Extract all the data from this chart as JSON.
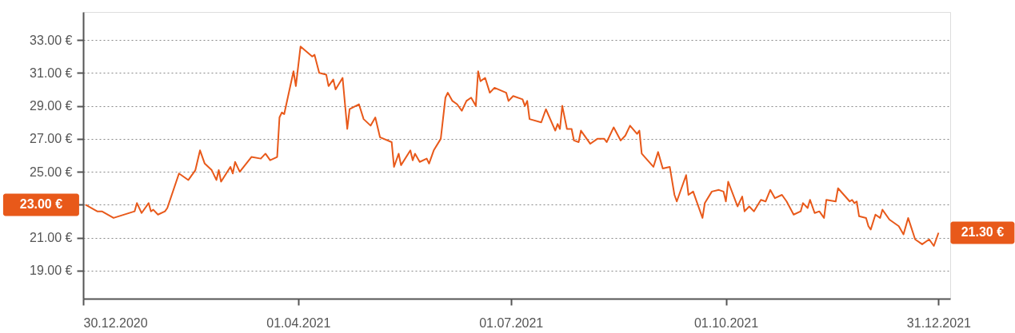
{
  "chart_data": {
    "type": "line",
    "x": [
      "2020-12-31",
      "2021-01-05",
      "2021-01-07",
      "2021-01-12",
      "2021-01-21",
      "2021-01-22",
      "2021-01-24",
      "2021-01-27",
      "2021-01-28",
      "2021-01-29",
      "2021-01-31",
      "2021-02-03",
      "2021-02-04",
      "2021-02-09",
      "2021-02-13",
      "2021-02-16",
      "2021-02-18",
      "2021-02-20",
      "2021-02-23",
      "2021-02-25",
      "2021-02-26",
      "2021-02-27",
      "2021-03-03",
      "2021-03-04",
      "2021-03-05",
      "2021-03-07",
      "2021-03-12",
      "2021-03-16",
      "2021-03-18",
      "2021-03-20",
      "2021-03-23",
      "2021-03-24",
      "2021-03-25",
      "2021-03-26",
      "2021-03-30",
      "2021-03-31",
      "2021-04-02",
      "2021-04-07",
      "2021-04-08",
      "2021-04-10",
      "2021-04-13",
      "2021-04-14",
      "2021-04-16",
      "2021-04-17",
      "2021-04-20",
      "2021-04-22",
      "2021-04-23",
      "2021-04-27",
      "2021-04-29",
      "2021-05-02",
      "2021-05-04",
      "2021-05-06",
      "2021-05-11",
      "2021-05-12",
      "2021-05-14",
      "2021-05-15",
      "2021-05-19",
      "2021-05-20",
      "2021-05-21",
      "2021-05-23",
      "2021-05-26",
      "2021-05-27",
      "2021-05-29",
      "2021-06-01",
      "2021-06-03",
      "2021-06-04",
      "2021-06-06",
      "2021-06-08",
      "2021-06-10",
      "2021-06-12",
      "2021-06-14",
      "2021-06-16",
      "2021-06-17",
      "2021-06-18",
      "2021-06-20",
      "2021-06-22",
      "2021-06-24",
      "2021-06-29",
      "2021-06-30",
      "2021-07-02",
      "2021-07-06",
      "2021-07-07",
      "2021-07-08",
      "2021-07-09",
      "2021-07-14",
      "2021-07-16",
      "2021-07-20",
      "2021-07-21",
      "2021-07-22",
      "2021-07-23",
      "2021-07-25",
      "2021-07-27",
      "2021-07-28",
      "2021-07-30",
      "2021-07-31",
      "2021-08-04",
      "2021-08-07",
      "2021-08-10",
      "2021-08-11",
      "2021-08-14",
      "2021-08-17",
      "2021-08-19",
      "2021-08-21",
      "2021-08-24",
      "2021-08-25",
      "2021-08-26",
      "2021-08-31",
      "2021-09-02",
      "2021-09-04",
      "2021-09-07",
      "2021-09-09",
      "2021-09-10",
      "2021-09-14",
      "2021-09-15",
      "2021-09-17",
      "2021-09-21",
      "2021-09-22",
      "2021-09-25",
      "2021-09-28",
      "2021-09-30",
      "2021-10-01",
      "2021-10-02",
      "2021-10-06",
      "2021-10-08",
      "2021-10-09",
      "2021-10-11",
      "2021-10-13",
      "2021-10-16",
      "2021-10-18",
      "2021-10-20",
      "2021-10-22",
      "2021-10-25",
      "2021-10-27",
      "2021-10-30",
      "2021-11-02",
      "2021-11-03",
      "2021-11-05",
      "2021-11-06",
      "2021-11-08",
      "2021-11-10",
      "2021-11-12",
      "2021-11-13",
      "2021-11-17",
      "2021-11-18",
      "2021-11-23",
      "2021-11-24",
      "2021-11-25",
      "2021-11-26",
      "2021-11-27",
      "2021-11-30",
      "2021-12-01",
      "2021-12-02",
      "2021-12-04",
      "2021-12-06",
      "2021-12-07",
      "2021-12-10",
      "2021-12-14",
      "2021-12-16",
      "2021-12-18",
      "2021-12-21",
      "2021-12-24",
      "2021-12-27",
      "2021-12-29",
      "2021-12-31"
    ],
    "series": [
      {
        "color": "#e8591a",
        "values": [
          23.0,
          22.6,
          22.6,
          22.2,
          22.6,
          23.1,
          22.5,
          23.1,
          22.6,
          22.7,
          22.4,
          22.6,
          22.8,
          24.9,
          24.5,
          25.1,
          26.3,
          25.5,
          25.1,
          24.5,
          25.1,
          24.4,
          25.3,
          24.9,
          25.6,
          25.0,
          25.9,
          25.8,
          26.1,
          25.7,
          25.9,
          28.3,
          28.6,
          28.5,
          31.1,
          30.2,
          32.6,
          32.0,
          32.1,
          31.0,
          30.9,
          30.2,
          30.6,
          30.0,
          30.7,
          27.6,
          28.8,
          29.1,
          28.2,
          27.8,
          28.3,
          27.1,
          26.8,
          25.3,
          26.1,
          25.4,
          26.3,
          25.7,
          26.1,
          25.6,
          25.8,
          25.5,
          26.3,
          27.0,
          29.5,
          29.8,
          29.3,
          29.1,
          28.7,
          29.3,
          29.5,
          29.0,
          31.1,
          30.5,
          30.7,
          29.8,
          30.1,
          29.8,
          29.3,
          29.6,
          29.4,
          29.0,
          29.3,
          28.2,
          28.0,
          28.8,
          27.5,
          27.9,
          27.6,
          29.0,
          27.6,
          27.6,
          26.9,
          26.8,
          27.5,
          26.7,
          27.0,
          27.0,
          26.8,
          27.7,
          26.9,
          27.2,
          27.8,
          27.3,
          27.5,
          26.1,
          25.3,
          26.2,
          25.2,
          25.3,
          23.6,
          23.2,
          24.8,
          23.6,
          23.8,
          22.2,
          23.1,
          23.8,
          23.9,
          23.8,
          23.2,
          24.4,
          22.9,
          23.5,
          22.6,
          22.9,
          22.6,
          23.3,
          23.2,
          23.9,
          23.4,
          23.6,
          23.2,
          22.4,
          22.6,
          23.1,
          22.8,
          23.3,
          22.5,
          22.6,
          22.2,
          23.3,
          23.2,
          24.0,
          23.2,
          23.3,
          23.1,
          23.2,
          22.3,
          22.2,
          21.7,
          21.5,
          22.4,
          22.2,
          22.7,
          22.1,
          21.7,
          21.2,
          22.2,
          20.9,
          20.6,
          20.9,
          20.5,
          21.3
        ]
      }
    ],
    "xlim": [
      "2020-12-30",
      "2022-01-05"
    ],
    "xticks": [
      {
        "value": "2020-12-30",
        "label": "30.12.2020"
      },
      {
        "value": "2021-04-01",
        "label": "01.04.2021"
      },
      {
        "value": "2021-07-01",
        "label": "01.07.2021"
      },
      {
        "value": "2021-10-01",
        "label": "01.10.2021"
      },
      {
        "value": "2021-12-31",
        "label": "31.12.2021"
      }
    ],
    "ylim": [
      17.3,
      34.7
    ],
    "yticks": [
      {
        "value": 19,
        "label": "19.00 €"
      },
      {
        "value": 21,
        "label": "21.00 €"
      },
      {
        "value": 23,
        "label": null
      },
      {
        "value": 25,
        "label": "25.00 €"
      },
      {
        "value": 27,
        "label": "27.00 €"
      },
      {
        "value": 29,
        "label": "29.00 €"
      },
      {
        "value": 31,
        "label": "31.00 €"
      },
      {
        "value": 33,
        "label": "33.00 €"
      }
    ],
    "grid": "y",
    "annotations": [
      {
        "text": "23.00 €",
        "x": "2020-12-31",
        "y": 23.0
      },
      {
        "text": "21.30 €",
        "x": "2021-12-31",
        "y": 21.3
      }
    ]
  }
}
